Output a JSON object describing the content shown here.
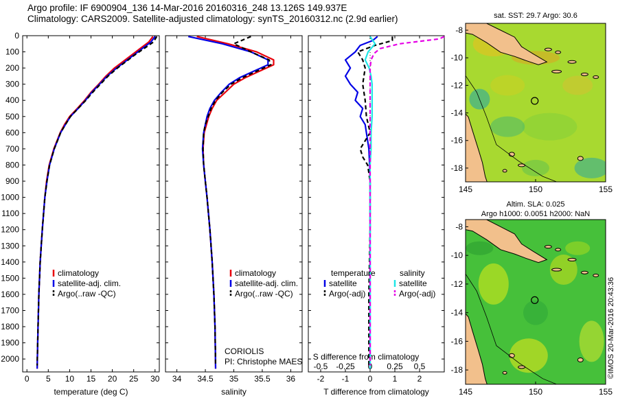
{
  "header": {
    "title_line1": "Argo profile: IF 6900904_136 14-Mar-2016 20160316_248 13.126S 149.937E",
    "title_line2": "Climatology: CARS2009. Satellite-adjusted climatology: synTS_20160312.nc (2.9d earlier)"
  },
  "stamp": "©IMOS 20-Mar-2016 20:43:36",
  "colors": {
    "red": "#e8000b",
    "blue": "#0000e6",
    "black": "#000000",
    "cyan": "#1fe6e6",
    "magenta": "#e600e6",
    "land": "#f2c08c"
  },
  "legends": {
    "climatology": "climatology",
    "satellite_adj": "satellite-adj. clim.",
    "argo_raw": "Argo(..raw -QC)",
    "temperature": "temperature",
    "salinity": "salinity",
    "satellite": "satellite",
    "argo_adj": "Argo(-adj)"
  },
  "annotations": {
    "coriolis": "CORIOLIS",
    "pi": "PI: Christophe MAES"
  },
  "maps": {
    "sst_title": "sat. SST: 29.7 Argo: 30.6",
    "sla_title_line1": "Altim. SLA: 0.025",
    "sla_title_line2": "Argo h1000: 0.0051 h2000: NaN",
    "xticks": [
      "145",
      "150",
      "155"
    ],
    "yticks": [
      "-8",
      "-10",
      "-12",
      "-14",
      "-16",
      "-18"
    ],
    "lon_range": [
      145,
      155
    ],
    "lat_range": [
      -19,
      -7.5
    ],
    "argo_position": {
      "lon": 149.937,
      "lat": -13.126
    }
  },
  "chart_data": [
    {
      "type": "line",
      "xlabel": "temperature (deg C)",
      "ylabel": "",
      "xlim": [
        -1,
        31
      ],
      "ylim": [
        2080,
        0
      ],
      "xticks": [
        0,
        5,
        10,
        15,
        20,
        25,
        30
      ],
      "yticks": [
        0,
        100,
        200,
        300,
        400,
        500,
        600,
        700,
        800,
        900,
        1000,
        1100,
        1200,
        1300,
        1400,
        1500,
        1600,
        1700,
        1800,
        1900,
        2000
      ],
      "series": [
        {
          "name": "climatology",
          "color": "red",
          "dash": false,
          "y": [
            5,
            40,
            80,
            120,
            160,
            200,
            250,
            300,
            350,
            400,
            450,
            500,
            550,
            600,
            700,
            800,
            900,
            1000,
            1200,
            1400,
            1600,
            1800,
            2060
          ],
          "x": [
            29.5,
            28.5,
            26.5,
            24.5,
            22.5,
            20.5,
            18.5,
            16.8,
            15.0,
            13.5,
            11.8,
            10.0,
            8.8,
            7.8,
            6.3,
            5.2,
            4.6,
            4.2,
            3.6,
            3.1,
            2.8,
            2.6,
            2.4
          ]
        },
        {
          "name": "satellite-adj. clim.",
          "color": "blue",
          "dash": false,
          "y": [
            5,
            40,
            80,
            120,
            160,
            200,
            250,
            300,
            350,
            400,
            450,
            500,
            550,
            600,
            700,
            800,
            900,
            1000,
            1200,
            1400,
            1600,
            1800,
            2060
          ],
          "x": [
            30.0,
            29.0,
            27.0,
            25.0,
            23.0,
            21.0,
            18.8,
            17.0,
            15.2,
            13.7,
            12.0,
            10.2,
            9.0,
            7.9,
            6.4,
            5.3,
            4.7,
            4.2,
            3.6,
            3.1,
            2.8,
            2.6,
            2.4
          ]
        },
        {
          "name": "Argo(..raw -QC)",
          "color": "black",
          "dash": true,
          "y": [
            5,
            40,
            80,
            120,
            160,
            200,
            250,
            300,
            350,
            400,
            450,
            500,
            550,
            600,
            700,
            800,
            900,
            1000,
            1200,
            1400,
            1600,
            1800,
            2040
          ],
          "x": [
            30.4,
            29.6,
            27.4,
            25.2,
            23.2,
            21.2,
            19.0,
            17.2,
            15.4,
            13.8,
            12.0,
            10.2,
            9.0,
            7.9,
            6.4,
            5.3,
            4.7,
            4.2,
            3.6,
            3.1,
            2.8,
            2.6,
            2.4
          ]
        }
      ]
    },
    {
      "type": "line",
      "xlabel": "salinity",
      "ylabel": "",
      "xlim": [
        33.8,
        36.2
      ],
      "ylim": [
        2080,
        0
      ],
      "xticks": [
        34,
        34.5,
        35,
        35.5,
        36
      ],
      "xticklabels": [
        "34",
        "34.5",
        "35",
        "35.5",
        "36"
      ],
      "series": [
        {
          "name": "climatology",
          "color": "red",
          "dash": false,
          "y": [
            5,
            50,
            100,
            150,
            180,
            220,
            260,
            300,
            350,
            400,
            450,
            500,
            550,
            600,
            700,
            800,
            900,
            1000,
            1200,
            1400,
            1600,
            1800,
            2060
          ],
          "x": [
            34.35,
            34.9,
            35.4,
            35.7,
            35.7,
            35.45,
            35.2,
            35.0,
            34.85,
            34.7,
            34.62,
            34.56,
            34.52,
            34.48,
            34.46,
            34.47,
            34.5,
            34.53,
            34.58,
            34.62,
            34.65,
            34.67,
            34.68
          ]
        },
        {
          "name": "satellite-adj. clim.",
          "color": "blue",
          "dash": false,
          "y": [
            5,
            50,
            100,
            150,
            180,
            220,
            260,
            300,
            350,
            400,
            450,
            500,
            550,
            600,
            700,
            800,
            900,
            1000,
            1200,
            1400,
            1600,
            1800,
            2060
          ],
          "x": [
            34.2,
            34.8,
            35.3,
            35.6,
            35.6,
            35.35,
            35.1,
            34.92,
            34.78,
            34.66,
            34.58,
            34.53,
            34.5,
            34.47,
            34.45,
            34.47,
            34.5,
            34.53,
            34.58,
            34.62,
            34.65,
            34.67,
            34.68
          ]
        },
        {
          "name": "Argo(..raw -QC)",
          "color": "black",
          "dash": true,
          "y": [
            5,
            50,
            100,
            150,
            180,
            220,
            260,
            300,
            350,
            400,
            450,
            500,
            550,
            600,
            700,
            800,
            900,
            1000,
            1200,
            1400,
            1600,
            1800,
            2040
          ],
          "x": [
            35.3,
            35.0,
            35.3,
            35.62,
            35.65,
            35.4,
            35.15,
            34.95,
            34.8,
            34.68,
            34.6,
            34.55,
            34.5,
            34.47,
            34.46,
            34.47,
            34.5,
            34.53,
            34.58,
            34.62,
            34.65,
            34.67,
            34.68
          ]
        }
      ]
    },
    {
      "type": "line",
      "xlabel": "T difference from climatology",
      "xlabel_top": "S difference from climatology",
      "ylabel": "",
      "xlim": [
        -2.5,
        3
      ],
      "ylim": [
        2080,
        0
      ],
      "xticks": [
        -2,
        -1,
        0,
        1,
        2
      ],
      "s_xlim": [
        -0.625,
        0.75
      ],
      "s_xticks": [
        -0.5,
        -0.25,
        0,
        0.25,
        0.5
      ],
      "s_xticklabels": [
        "-0.5",
        "-0.25",
        "0",
        "0.25",
        "0.5"
      ],
      "series": [
        {
          "name": "temperature satellite",
          "var": "T",
          "color": "blue",
          "dash": false,
          "y": [
            5,
            30,
            60,
            100,
            150,
            200,
            250,
            300,
            350,
            400,
            450,
            500,
            550,
            600,
            650,
            700,
            800,
            900,
            1000,
            1200,
            1600,
            2000,
            2060
          ],
          "x": [
            0.3,
            0.1,
            -0.4,
            -0.6,
            -1.0,
            -0.8,
            -1.0,
            -0.8,
            -0.5,
            -0.6,
            -0.3,
            -0.4,
            -0.2,
            -0.15,
            -0.1,
            -0.05,
            -0.02,
            0.0,
            0.0,
            0.0,
            0.0,
            0.0,
            0.0
          ]
        },
        {
          "name": "temperature Argo(-adj)",
          "var": "T",
          "color": "black",
          "dash": true,
          "y": [
            5,
            30,
            60,
            100,
            150,
            200,
            300,
            400,
            500,
            600,
            700,
            750,
            800,
            900,
            1000,
            1200,
            1600,
            2040
          ],
          "x": [
            0.9,
            0.9,
            0.2,
            -0.5,
            -0.3,
            -0.2,
            -0.3,
            -0.2,
            -0.15,
            0.0,
            -0.4,
            -0.3,
            -0.1,
            0.0,
            0.0,
            0.0,
            -0.05,
            -0.05
          ]
        },
        {
          "name": "salinity satellite",
          "var": "S",
          "color": "cyan",
          "dash": false,
          "y": [
            5,
            50,
            100,
            150,
            200,
            250,
            300,
            400,
            500,
            600,
            700,
            800,
            900,
            1000,
            1200,
            1600,
            2060
          ],
          "x": [
            0.0,
            0.05,
            -0.02,
            -0.05,
            -0.01,
            0.01,
            0.02,
            0.02,
            0.02,
            0.01,
            0.01,
            0.0,
            0.0,
            0.0,
            0.0,
            0.0,
            0.0
          ]
        },
        {
          "name": "salinity Argo(-adj)",
          "var": "S",
          "color": "magenta",
          "dash": true,
          "y": [
            5,
            20,
            50,
            80,
            110,
            150,
            200,
            250,
            300,
            400,
            500,
            600,
            700,
            800,
            900,
            1000,
            1200,
            1600,
            2040
          ],
          "x": [
            0.75,
            0.7,
            0.3,
            0.1,
            0.04,
            0.01,
            0.0,
            0.0,
            0.0,
            0.0,
            0.0,
            0.0,
            0.0,
            0.0,
            0.0,
            0.0,
            0.0,
            0.0,
            0.0
          ]
        }
      ]
    }
  ]
}
